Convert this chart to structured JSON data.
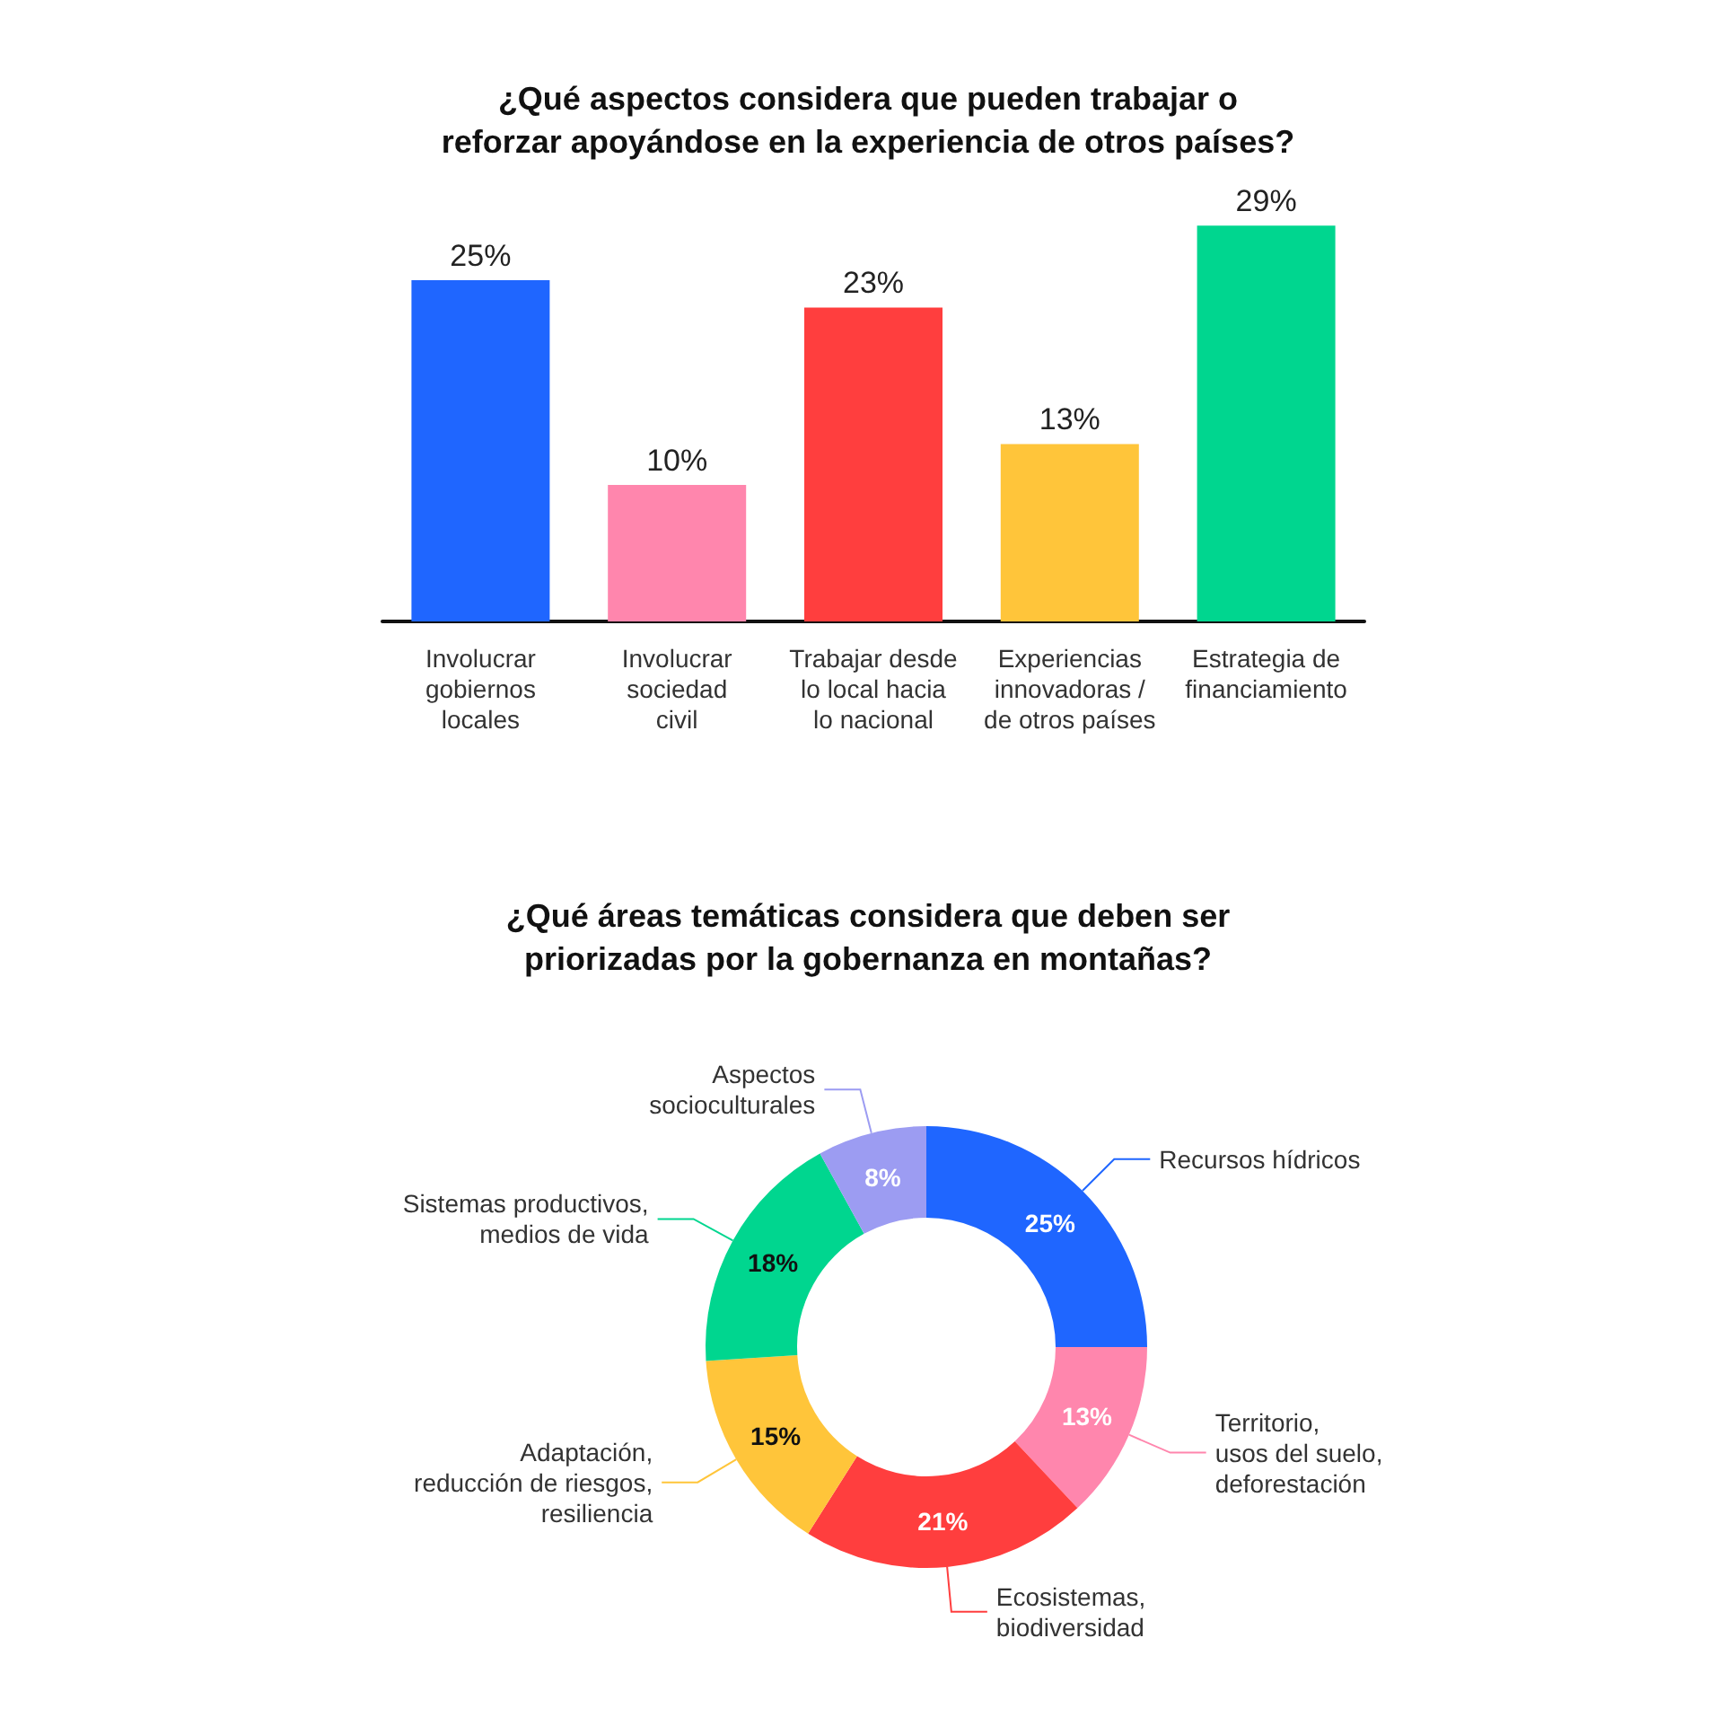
{
  "chart_data": [
    {
      "type": "bar",
      "title": "¿Qué aspectos considera que pueden trabajar o\nreforzar apoyándose en la experiencia de otros países?",
      "categories": [
        "Involucrar\ngobiernos\nlocales",
        "Involucrar\nsociedad\ncivil",
        "Trabajar desde\nlo local hacia\nlo nacional",
        "Experiencias\ninnovadoras /\nde otros países",
        "Estrategia de\nfinanciamiento"
      ],
      "values": [
        25,
        10,
        23,
        13,
        29
      ],
      "colors": [
        "#1f66ff",
        "#ff86ad",
        "#ff3e3e",
        "#ffc53a",
        "#00d68f"
      ],
      "value_labels": [
        "25%",
        "10%",
        "23%",
        "13%",
        "29%"
      ],
      "legend": false
    },
    {
      "type": "donut",
      "title": "¿Qué áreas temáticas considera que deben ser\npriorizadas por la gobernanza en montañas?",
      "categories": [
        "Recursos hídricos",
        "Territorio,\nusos del suelo,\ndeforestación",
        "Ecosistemas,\nbiodiversidad",
        "Adaptación,\nreducción de riesgos,\nresiliencia",
        "Sistemas productivos,\nmedios de vida",
        "Aspectos\nsocioculturales"
      ],
      "values": [
        25,
        13,
        21,
        15,
        18,
        8
      ],
      "colors": [
        "#1f66ff",
        "#ff86ad",
        "#ff3e3e",
        "#ffc53a",
        "#00d68f",
        "#9c9cf2"
      ],
      "value_labels": [
        "25%",
        "13%",
        "21%",
        "15%",
        "18%",
        "8%"
      ],
      "legend": false
    }
  ]
}
